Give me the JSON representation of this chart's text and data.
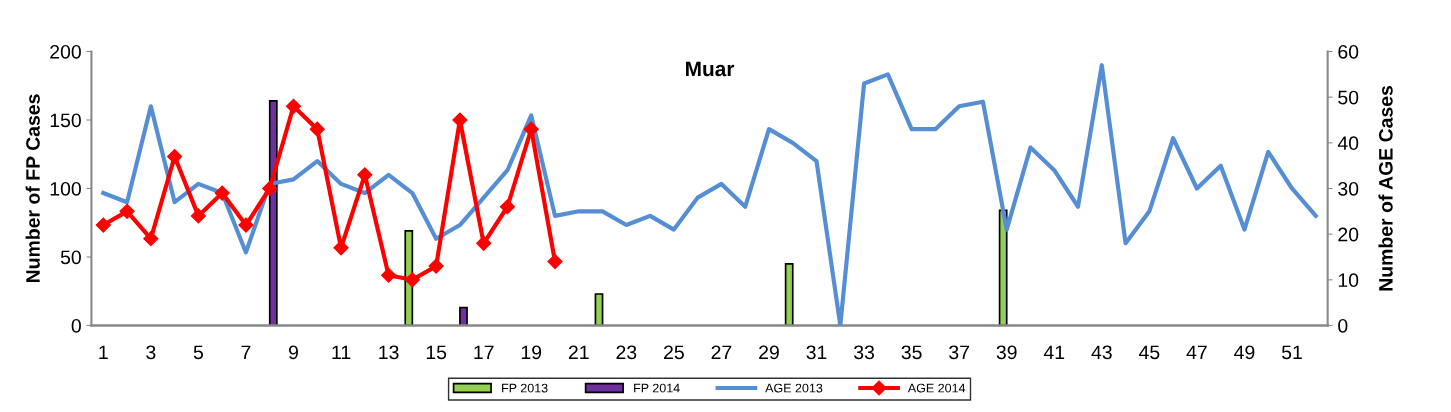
{
  "chart_data": {
    "type": "bar",
    "title": "Muar",
    "ylabel": "Number of FP Cases",
    "y2label": "Number of AGE Cases",
    "categories": [
      "1",
      null,
      "3",
      null,
      "5",
      null,
      "7",
      null,
      "9",
      null,
      "11",
      null,
      "13",
      null,
      "15",
      null,
      "17",
      null,
      "19",
      null,
      "21",
      null,
      "23",
      null,
      "25",
      null,
      "27",
      null,
      "29",
      null,
      "31",
      null,
      "33",
      null,
      "35",
      null,
      "37",
      null,
      "39",
      null,
      "41",
      null,
      "43",
      null,
      "45",
      null,
      "47",
      null,
      "49",
      null,
      "51",
      null
    ],
    "ylim": [
      0,
      200
    ],
    "yticks": [
      0,
      50,
      100,
      150,
      200
    ],
    "y2lim": [
      0,
      60
    ],
    "y2ticks": [
      0,
      10,
      20,
      30,
      40,
      50,
      60
    ],
    "legend": "bottom",
    "series": [
      {
        "name": "FP 2013",
        "color": "#92d050",
        "values": [
          null,
          null,
          null,
          null,
          null,
          null,
          null,
          null,
          null,
          null,
          null,
          null,
          null,
          69,
          null,
          null,
          null,
          null,
          null,
          null,
          null,
          23,
          null,
          null,
          null,
          null,
          null,
          null,
          null,
          45,
          null,
          null,
          null,
          null,
          null,
          null,
          null,
          null,
          84,
          null,
          null,
          null,
          null,
          null,
          null,
          null,
          null,
          null,
          null,
          null,
          null,
          null
        ]
      },
      {
        "name": "FP 2014",
        "color": "#7030a0",
        "values": [
          null,
          null,
          null,
          null,
          null,
          null,
          null,
          164,
          null,
          null,
          null,
          null,
          null,
          null,
          null,
          13,
          null,
          null,
          null,
          null,
          null,
          null,
          null,
          null,
          null,
          null,
          null,
          null,
          null,
          null,
          null,
          null,
          null,
          null,
          null,
          null,
          null,
          null,
          null,
          null,
          null,
          null,
          null,
          null,
          null,
          null,
          null,
          null,
          null,
          null,
          null,
          null
        ]
      },
      {
        "name": "AGE 2013",
        "type": "line",
        "axis": "y2",
        "color": "#558ed5",
        "marker": "none",
        "values": [
          29,
          27,
          48,
          27,
          31,
          29,
          16,
          31,
          32,
          36,
          31,
          29,
          33,
          29,
          19,
          22,
          28,
          34,
          46,
          24,
          25,
          25,
          22,
          24,
          21,
          28,
          31,
          26,
          43,
          40,
          36,
          0,
          53,
          55,
          43,
          43,
          48,
          49,
          21,
          39,
          34,
          26,
          57,
          18,
          25,
          41,
          30,
          35,
          21,
          38,
          30,
          24
        ]
      },
      {
        "name": "AGE 2014",
        "type": "line",
        "axis": "y2",
        "color": "#ff0000",
        "marker": "diamond",
        "values": [
          22,
          25,
          19,
          37,
          24,
          29,
          22,
          30,
          48,
          43,
          17,
          33,
          11,
          10,
          13,
          45,
          18,
          26,
          43,
          14,
          null,
          null,
          null,
          null,
          null,
          null,
          null,
          null,
          null,
          null,
          null,
          null,
          null,
          null,
          null,
          null,
          null,
          null,
          null,
          null,
          null,
          null,
          null,
          null,
          null,
          null,
          null,
          null,
          null,
          null,
          null,
          null
        ]
      }
    ]
  }
}
